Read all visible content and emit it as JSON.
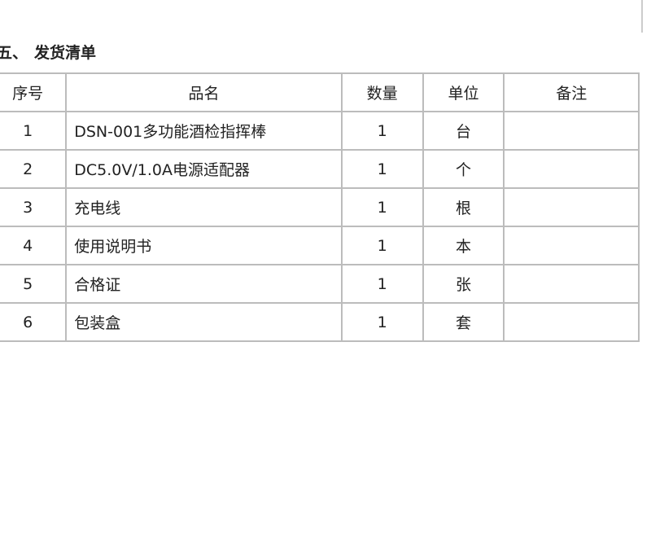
{
  "header": {
    "number": "五、",
    "title": "发货清单"
  },
  "table": {
    "columns": [
      "序号",
      "品名",
      "数量",
      "单位",
      "备注"
    ],
    "rows": [
      [
        "1",
        "DSN-001多功能酒检指挥棒",
        "1",
        "台",
        null
      ],
      [
        "2",
        "DC5.0V/1.0A电源适配器",
        "1",
        "个",
        null
      ],
      [
        "3",
        "充电线",
        "1",
        "根",
        null
      ],
      [
        "4",
        "使用说明书",
        "1",
        "本",
        null
      ],
      [
        "5",
        "合格证",
        "1",
        "张",
        null
      ],
      [
        "6",
        "包装盒",
        "1",
        "套",
        null
      ]
    ]
  }
}
